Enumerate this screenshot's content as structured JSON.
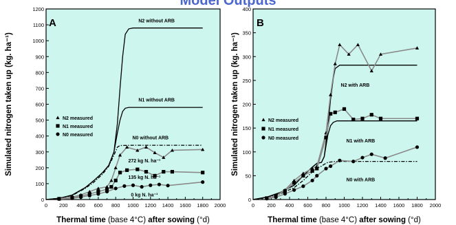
{
  "header": {
    "title": "Model Outputs"
  },
  "chart_data": [
    {
      "type": "line",
      "panel_label": "A",
      "xlabel_parts": [
        "Thermal time",
        " (base 4°C) ",
        "after sowing",
        " (°d)"
      ],
      "ylabel": "Simulated nitrogen taken up (kg. ha⁻¹)",
      "xlim": [
        0,
        2000
      ],
      "ylim": [
        0,
        1200
      ],
      "xticks": [
        0,
        100,
        200,
        300,
        400,
        500,
        600,
        700,
        800,
        900,
        1000,
        1100,
        1200,
        1300,
        1400,
        1500,
        1600,
        1700,
        1800,
        1900,
        2000
      ],
      "xtick_labels": [
        "0",
        "",
        "200",
        "",
        "400",
        "",
        "600",
        "",
        "800",
        "",
        "1000",
        "",
        "1200",
        "",
        "1400",
        "",
        "1600",
        "",
        "1800",
        "",
        "2000"
      ],
      "yticks": [
        0,
        100,
        200,
        300,
        400,
        500,
        600,
        700,
        800,
        900,
        1000,
        1100,
        1200
      ],
      "grid": false,
      "legend_position": "middle-left",
      "legend": [
        {
          "marker": "triangle",
          "label": "N2 measured"
        },
        {
          "marker": "square",
          "label": "N1 measured"
        },
        {
          "marker": "circle",
          "label": "N0 measured"
        }
      ],
      "series": [
        {
          "name": "N2 without ARB",
          "kind": "sim",
          "dash": "solid",
          "x": [
            0,
            150,
            300,
            450,
            550,
            650,
            720,
            780,
            820,
            850,
            880,
            910,
            950,
            1000,
            1100,
            1300,
            1500,
            1800
          ],
          "y": [
            0,
            8,
            28,
            75,
            120,
            170,
            215,
            300,
            480,
            700,
            900,
            1040,
            1075,
            1080,
            1080,
            1080,
            1080,
            1080
          ]
        },
        {
          "name": "N1 without ARB",
          "kind": "sim",
          "dash": "solid",
          "x": [
            0,
            150,
            300,
            450,
            550,
            650,
            720,
            780,
            820,
            850,
            880,
            910,
            950,
            1000,
            1100,
            1300,
            1500,
            1800
          ],
          "y": [
            0,
            8,
            28,
            75,
            120,
            170,
            215,
            300,
            420,
            500,
            555,
            575,
            580,
            580,
            580,
            580,
            580,
            580
          ]
        },
        {
          "name": "N0 without ARB",
          "kind": "sim",
          "dash": "dashdot",
          "x": [
            0,
            150,
            300,
            450,
            550,
            650,
            720,
            780,
            820,
            850,
            1000,
            1300,
            1500,
            1800
          ],
          "y": [
            0,
            8,
            25,
            70,
            110,
            160,
            210,
            280,
            330,
            340,
            342,
            342,
            342,
            342
          ]
        },
        {
          "name": "N2 measured",
          "kind": "measured",
          "marker": "triangle",
          "x": [
            150,
            300,
            400,
            500,
            600,
            700,
            750,
            800,
            850,
            930,
            1050,
            1150,
            1250,
            1350,
            1450,
            1800
          ],
          "y": [
            5,
            15,
            30,
            50,
            70,
            80,
            120,
            200,
            280,
            330,
            310,
            330,
            295,
            265,
            310,
            315
          ]
        },
        {
          "name": "N1 measured",
          "kind": "measured",
          "marker": "square",
          "x": [
            150,
            300,
            400,
            500,
            600,
            700,
            750,
            800,
            850,
            930,
            1050,
            1150,
            1250,
            1350,
            1450,
            1800
          ],
          "y": [
            5,
            12,
            22,
            35,
            50,
            65,
            80,
            120,
            170,
            185,
            190,
            175,
            150,
            175,
            175,
            170
          ]
        },
        {
          "name": "N0 measured",
          "kind": "measured",
          "marker": "circle",
          "x": [
            150,
            300,
            400,
            500,
            600,
            700,
            800,
            900,
            1000,
            1100,
            1200,
            1300,
            1400,
            1800
          ],
          "y": [
            3,
            8,
            15,
            25,
            35,
            50,
            70,
            85,
            90,
            80,
            90,
            95,
            88,
            110
          ]
        }
      ],
      "annotations": [
        {
          "text": "N2 without ARB",
          "x": 1270,
          "y": 1115
        },
        {
          "text": "N1 without ARB",
          "x": 1270,
          "y": 618
        },
        {
          "text": "N0 without ARB",
          "x": 1200,
          "y": 380
        },
        {
          "text": "272 kg N. ha⁻¹",
          "x": 1130,
          "y": 235
        },
        {
          "text": "135 kg N. ha⁻¹",
          "x": 1130,
          "y": 130
        },
        {
          "text": "0 kg N. ha⁻¹",
          "x": 1130,
          "y": 20
        }
      ]
    },
    {
      "type": "line",
      "panel_label": "B",
      "xlabel_parts": [
        "Thermal time",
        " (base 4°C) ",
        "after sowing",
        " (°d)"
      ],
      "ylabel": "Simulated nitrogen taken up (kg. ha⁻¹)",
      "xlim": [
        0,
        2000
      ],
      "ylim": [
        0,
        400
      ],
      "xticks": [
        0,
        100,
        200,
        300,
        400,
        500,
        600,
        700,
        800,
        900,
        1000,
        1100,
        1200,
        1300,
        1400,
        1500,
        1600,
        1700,
        1800,
        1900,
        2000
      ],
      "xtick_labels": [
        "0",
        "",
        "200",
        "",
        "400",
        "",
        "600",
        "",
        "800",
        "",
        "1000",
        "",
        "1200",
        "",
        "1400",
        "",
        "1600",
        "",
        "1800",
        "",
        "2000"
      ],
      "yticks": [
        0,
        50,
        100,
        150,
        200,
        250,
        300,
        350,
        400
      ],
      "grid": false,
      "legend_position": "middle-left",
      "legend": [
        {
          "marker": "triangle",
          "label": "N2 measured"
        },
        {
          "marker": "square",
          "label": "N1 measured"
        },
        {
          "marker": "circle",
          "label": "N0 measured"
        }
      ],
      "series": [
        {
          "name": "N2 with ARB",
          "kind": "sim",
          "dash": "solid",
          "x": [
            0,
            150,
            300,
            450,
            550,
            650,
            700,
            750,
            780,
            820,
            850,
            880,
            900,
            950,
            1000,
            1100,
            1300,
            1500,
            1800
          ],
          "y": [
            0,
            5,
            15,
            30,
            50,
            68,
            76,
            78,
            90,
            150,
            210,
            255,
            275,
            282,
            282,
            282,
            282,
            282,
            282
          ]
        },
        {
          "name": "N1 with ARB",
          "kind": "sim",
          "dash": "solid",
          "x": [
            0,
            150,
            300,
            450,
            550,
            650,
            700,
            750,
            780,
            820,
            850,
            880,
            920,
            1000,
            1100,
            1300,
            1500,
            1800
          ],
          "y": [
            0,
            5,
            15,
            30,
            50,
            68,
            76,
            78,
            90,
            135,
            155,
            162,
            165,
            165,
            165,
            165,
            165,
            165
          ]
        },
        {
          "name": "N0 with ARB",
          "kind": "sim",
          "dash": "dashdot",
          "x": [
            0,
            150,
            300,
            450,
            550,
            650,
            700,
            750,
            780,
            820,
            860,
            900,
            1000,
            1300,
            1500,
            1800
          ],
          "y": [
            0,
            4,
            12,
            25,
            40,
            58,
            66,
            70,
            74,
            78,
            79,
            80,
            80,
            80,
            80,
            80
          ]
        },
        {
          "name": "N2 measured",
          "kind": "measured",
          "marker": "triangle",
          "x": [
            150,
            250,
            350,
            450,
            550,
            650,
            700,
            800,
            850,
            900,
            950,
            1050,
            1150,
            1300,
            1400,
            1800
          ],
          "y": [
            3,
            8,
            20,
            40,
            55,
            65,
            70,
            140,
            220,
            285,
            325,
            305,
            325,
            270,
            305,
            318
          ]
        },
        {
          "name": "N1 measured",
          "kind": "measured",
          "marker": "square",
          "x": [
            150,
            250,
            350,
            450,
            550,
            650,
            700,
            800,
            850,
            900,
            1000,
            1100,
            1200,
            1300,
            1400,
            1800
          ],
          "y": [
            3,
            8,
            18,
            35,
            50,
            60,
            65,
            130,
            180,
            183,
            190,
            168,
            170,
            178,
            170,
            170
          ]
        },
        {
          "name": "N0 measured",
          "kind": "measured",
          "marker": "circle",
          "x": [
            150,
            250,
            350,
            450,
            550,
            650,
            700,
            800,
            850,
            950,
            1100,
            1200,
            1300,
            1450,
            1800
          ],
          "y": [
            2,
            5,
            12,
            20,
            28,
            40,
            50,
            65,
            70,
            82,
            80,
            88,
            95,
            87,
            110
          ]
        }
      ],
      "annotations": [
        {
          "text": "N2 with ARB",
          "x": 1120,
          "y": 237
        },
        {
          "text": "N1 with ARB",
          "x": 1180,
          "y": 120
        },
        {
          "text": "N0 with ARB",
          "x": 1180,
          "y": 38
        }
      ]
    }
  ]
}
